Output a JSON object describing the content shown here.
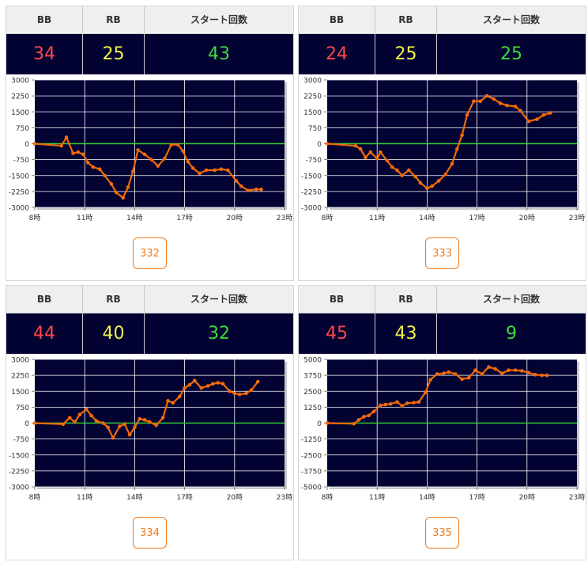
{
  "headers": {
    "bb": "BB",
    "rb": "RB",
    "start": "スタート回数"
  },
  "colors": {
    "bb": "#ff4747",
    "rb": "#f2f246",
    "start": "#3bdc3b",
    "line": "#f26a0a",
    "plot_bg": "#020233",
    "zero_line": "#33cc33",
    "grid": "#ffffff"
  },
  "panels": [
    {
      "bb": "34",
      "rb": "25",
      "start": "43",
      "button": "332",
      "chart_data": {
        "type": "line",
        "ylim": [
          -3000,
          3000
        ],
        "yticks": [
          "3000",
          "2250",
          "1500",
          "750",
          "0",
          "-750",
          "-1500",
          "-2250",
          "-3000"
        ],
        "xticks": [
          "8時",
          "11時",
          "14時",
          "17時",
          "20時",
          "23時"
        ],
        "xlim": [
          8,
          23
        ],
        "x": [
          8.0,
          9.6,
          9.9,
          10.3,
          10.6,
          10.9,
          11.2,
          11.5,
          11.9,
          12.2,
          12.6,
          12.9,
          13.3,
          13.6,
          13.9,
          14.2,
          14.6,
          15.0,
          15.4,
          15.8,
          16.2,
          16.6,
          16.9,
          17.2,
          17.5,
          17.9,
          18.3,
          18.8,
          19.2,
          19.6,
          20.1,
          20.4,
          20.8,
          21.3,
          21.6
        ],
        "y": [
          0,
          -100,
          300,
          -450,
          -400,
          -500,
          -900,
          -1100,
          -1200,
          -1500,
          -1900,
          -2300,
          -2550,
          -2050,
          -1300,
          -300,
          -500,
          -750,
          -1050,
          -700,
          -50,
          -50,
          -350,
          -850,
          -1150,
          -1400,
          -1250,
          -1250,
          -1200,
          -1250,
          -1750,
          -2000,
          -2200,
          -2150,
          -2150
        ]
      }
    },
    {
      "bb": "24",
      "rb": "25",
      "start": "25",
      "button": "333",
      "chart_data": {
        "type": "line",
        "ylim": [
          -3000,
          3000
        ],
        "yticks": [
          "3000",
          "2250",
          "1500",
          "750",
          "0",
          "-750",
          "-1500",
          "-2250",
          "-3000"
        ],
        "xticks": [
          "8時",
          "11時",
          "14時",
          "17時",
          "20時",
          "23時"
        ],
        "xlim": [
          8,
          23
        ],
        "x": [
          8.0,
          9.7,
          10.0,
          10.3,
          10.6,
          11.0,
          11.2,
          11.6,
          11.9,
          12.2,
          12.5,
          12.9,
          13.3,
          13.6,
          14.0,
          14.3,
          14.7,
          15.1,
          15.5,
          15.8,
          16.1,
          16.4,
          16.8,
          17.2,
          17.6,
          18.0,
          18.4,
          18.8,
          19.3,
          19.6,
          20.1,
          20.6,
          21.0,
          21.4
        ],
        "y": [
          0,
          -100,
          -250,
          -650,
          -400,
          -700,
          -400,
          -800,
          -1100,
          -1250,
          -1500,
          -1250,
          -1550,
          -1850,
          -2100,
          -2000,
          -1750,
          -1450,
          -950,
          -250,
          400,
          1350,
          2000,
          2000,
          2250,
          2100,
          1900,
          1800,
          1750,
          1550,
          1050,
          1150,
          1350,
          1450
        ]
      }
    },
    {
      "bb": "44",
      "rb": "40",
      "start": "32",
      "button": "334",
      "chart_data": {
        "type": "line",
        "ylim": [
          -3000,
          3000
        ],
        "yticks": [
          "3000",
          "2250",
          "1500",
          "750",
          "0",
          "-750",
          "-1500",
          "-2250",
          "-3000"
        ],
        "xticks": [
          "8時",
          "11時",
          "14時",
          "17時",
          "20時",
          "23時"
        ],
        "xlim": [
          8,
          23
        ],
        "x": [
          8.0,
          9.7,
          10.1,
          10.4,
          10.7,
          11.1,
          11.4,
          11.7,
          12.1,
          12.4,
          12.7,
          13.1,
          13.4,
          13.7,
          14.0,
          14.3,
          14.6,
          14.9,
          15.3,
          15.7,
          16.0,
          16.3,
          16.7,
          17.0,
          17.3,
          17.6,
          18.0,
          18.4,
          18.7,
          19.0,
          19.3,
          19.7,
          20.0,
          20.3,
          20.7,
          21.0,
          21.4
        ],
        "y": [
          0,
          -50,
          250,
          50,
          400,
          650,
          350,
          100,
          0,
          -200,
          -700,
          -150,
          -50,
          -550,
          -200,
          200,
          150,
          50,
          -100,
          250,
          1050,
          950,
          1250,
          1650,
          1800,
          2000,
          1650,
          1750,
          1850,
          1900,
          1850,
          1500,
          1400,
          1350,
          1400,
          1550,
          1950
        ]
      }
    },
    {
      "bb": "45",
      "rb": "43",
      "start": "9",
      "button": "335",
      "chart_data": {
        "type": "line",
        "ylim": [
          -5000,
          5000
        ],
        "yticks": [
          "5000",
          "3750",
          "2500",
          "1250",
          "0",
          "-1250",
          "-2500",
          "-3750",
          "-5000"
        ],
        "xticks": [
          "8時",
          "11時",
          "14時",
          "17時",
          "20時",
          "23時"
        ],
        "xlim": [
          8,
          23
        ],
        "x": [
          8.0,
          9.6,
          9.9,
          10.2,
          10.5,
          10.8,
          11.2,
          11.5,
          11.8,
          12.2,
          12.5,
          12.8,
          13.2,
          13.5,
          13.9,
          14.2,
          14.6,
          15.0,
          15.3,
          15.7,
          16.1,
          16.5,
          16.9,
          17.3,
          17.7,
          18.1,
          18.5,
          18.9,
          19.3,
          19.7,
          20.1,
          20.5,
          20.9,
          21.2
        ],
        "y": [
          0,
          -50,
          250,
          500,
          600,
          900,
          1400,
          1450,
          1500,
          1650,
          1350,
          1550,
          1600,
          1650,
          2400,
          3400,
          3850,
          3900,
          4000,
          3850,
          3450,
          3550,
          4150,
          3850,
          4400,
          4250,
          3900,
          4150,
          4150,
          4100,
          3950,
          3800,
          3750,
          3750
        ]
      }
    }
  ]
}
